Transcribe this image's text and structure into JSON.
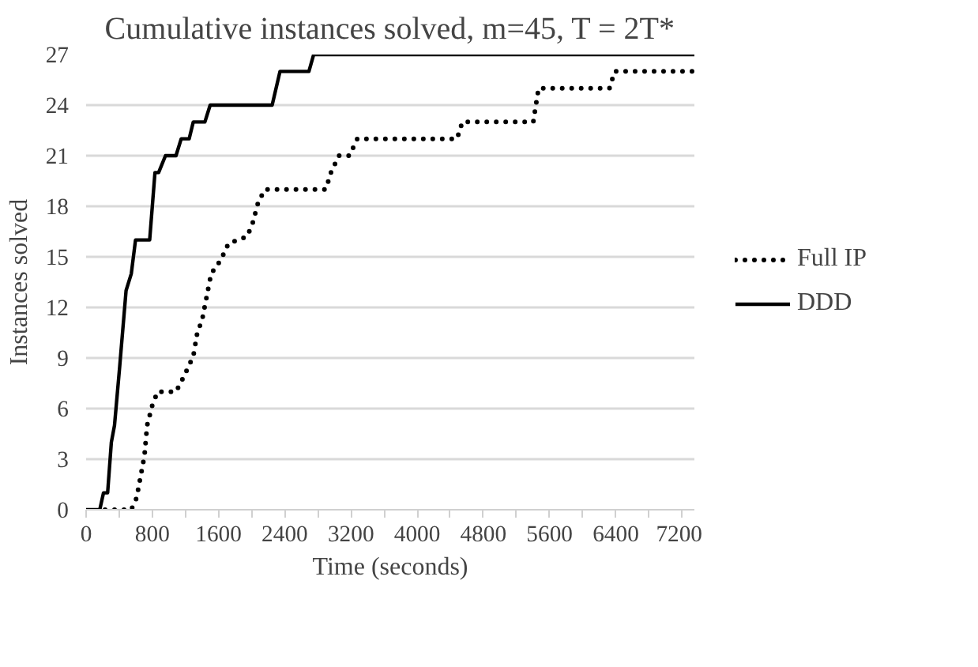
{
  "chart_data": {
    "type": "line",
    "title": "Cumulative instances solved, m=45, T = 2T*",
    "xlabel": "Time (seconds)",
    "ylabel": "Instances solved",
    "xlim": [
      0,
      7350
    ],
    "ylim": [
      0,
      27
    ],
    "xticks": [
      0,
      {
        "value": 400,
        "label": null
      },
      800,
      {
        "value": 1200,
        "label": null
      },
      1600,
      {
        "value": 2000,
        "label": null
      },
      2400,
      {
        "value": 2800,
        "label": null
      },
      3200,
      {
        "value": 3600,
        "label": null
      },
      4000,
      {
        "value": 4400,
        "label": null
      },
      4800,
      {
        "value": 5200,
        "label": null
      },
      5600,
      {
        "value": 6000,
        "label": null
      },
      6400,
      {
        "value": 6800,
        "label": null
      },
      7200
    ],
    "yticks": [
      0,
      3,
      6,
      9,
      12,
      15,
      18,
      21,
      24,
      27
    ],
    "grid": "y",
    "legend": "right",
    "marker": "none",
    "series": [
      {
        "name": "Full IP",
        "color": "#000000",
        "line_style": "dotted",
        "x": [
          229,
          546,
          610,
          705,
          737,
          800,
          864,
          1086,
          1181,
          1295,
          1340,
          1403,
          1467,
          1511,
          1626,
          1721,
          1943,
          2007,
          2083,
          2165,
          2896,
          2959,
          3054,
          3181,
          3277,
          4482,
          4546,
          5403,
          5467,
          6324,
          6387,
          7340
        ],
        "values": [
          0,
          0,
          0.7,
          3.2,
          5,
          6.2,
          7,
          7,
          7.9,
          9.1,
          10.4,
          11.3,
          12.9,
          14,
          14.8,
          15.8,
          16.2,
          16.9,
          18.3,
          19,
          19,
          20,
          21,
          21,
          22,
          22,
          23,
          23,
          25,
          25,
          26,
          26
        ]
      },
      {
        "name": "DDD",
        "color": "#000000",
        "line_style": "solid",
        "x": [
          0,
          165,
          210,
          260,
          305,
          343,
          406,
          483,
          546,
          597,
          768,
          832,
          876,
          959,
          1086,
          1149,
          1245,
          1295,
          1435,
          1499,
          2248,
          2343,
          2692,
          2750,
          7350
        ],
        "values": [
          0,
          0,
          1,
          1,
          4,
          5,
          8.5,
          13,
          14,
          16,
          16,
          20,
          20,
          21,
          21,
          22,
          22,
          23,
          23,
          24,
          24,
          26,
          26,
          27,
          27
        ]
      }
    ]
  }
}
